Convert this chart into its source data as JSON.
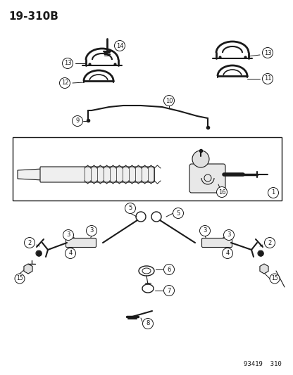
{
  "title": "19-310B",
  "footer": "93419  310",
  "bg_color": "#ffffff",
  "line_color": "#1a1a1a",
  "title_fontsize": 11,
  "footer_fontsize": 6.5,
  "fig_width": 4.16,
  "fig_height": 5.33,
  "dpi": 100
}
